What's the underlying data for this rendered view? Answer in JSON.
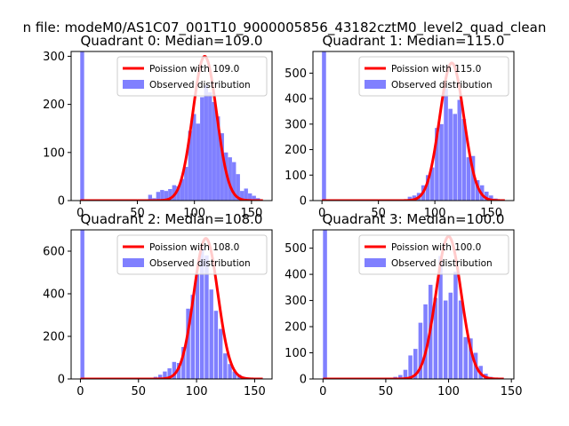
{
  "figure": {
    "suptitle": "n file: modeM0/AS1C07_001T10_9000005856_43182cztM0_level2_quad_clean"
  },
  "colors": {
    "histogram": "#8080ff",
    "poisson": "#ff0000",
    "axis": "#000000"
  },
  "chart_data": [
    {
      "type": "bar",
      "title": "Quadrant 0: Median=109.0",
      "legend": [
        "Poission with 109.0",
        "Observed distribution"
      ],
      "legend_position": "upper-right",
      "median": 109.0,
      "xlim": [
        -8,
        168
      ],
      "ylim": [
        0,
        310
      ],
      "xticks": [
        0,
        50,
        100,
        150
      ],
      "yticks": [
        0,
        100,
        200,
        300
      ],
      "bin_width": 3.4,
      "bins_start": [
        0,
        17,
        59.5,
        63,
        66.5,
        70,
        73.5,
        77,
        80.5,
        84,
        87.5,
        91,
        94.5,
        98,
        101.5,
        105,
        108.5,
        112,
        115.5,
        119,
        122.5,
        126,
        129.5,
        133,
        136.5,
        140,
        143.5,
        147,
        150.5,
        154
      ],
      "values": [
        310,
        2,
        12,
        5,
        18,
        22,
        20,
        24,
        32,
        30,
        45,
        70,
        145,
        180,
        160,
        215,
        240,
        225,
        205,
        175,
        140,
        100,
        90,
        80,
        55,
        20,
        25,
        15,
        10,
        5
      ],
      "poisson_peak": 300
    },
    {
      "type": "bar",
      "title": "Quadrant 1: Median=115.0",
      "legend": [
        "Poission with 115.0",
        "Observed distribution"
      ],
      "legend_position": "upper-right",
      "median": 115.0,
      "xlim": [
        -8,
        170
      ],
      "ylim": [
        0,
        585
      ],
      "xticks": [
        0,
        50,
        100,
        150
      ],
      "yticks": [
        0,
        100,
        200,
        300,
        400,
        500
      ],
      "bin_width": 3.6,
      "bins_start": [
        0,
        70,
        76,
        80,
        84,
        88,
        92,
        96,
        100,
        104,
        108,
        112,
        116,
        120,
        124,
        128,
        132,
        136,
        140,
        144,
        148,
        152
      ],
      "values": [
        585,
        5,
        15,
        20,
        30,
        60,
        100,
        130,
        285,
        300,
        440,
        360,
        340,
        395,
        320,
        170,
        175,
        80,
        60,
        35,
        20,
        8
      ],
      "poisson_peak": 540
    },
    {
      "type": "bar",
      "title": "Quadrant 2: Median=108.0",
      "legend": [
        "Poission with 108.0",
        "Observed distribution"
      ],
      "legend_position": "upper-right",
      "median": 108.0,
      "xlim": [
        -8,
        165
      ],
      "ylim": [
        0,
        700
      ],
      "xticks": [
        0,
        50,
        100,
        150
      ],
      "yticks": [
        0,
        200,
        400,
        600
      ],
      "bin_width": 3.4,
      "bins_start": [
        0,
        63,
        67,
        71,
        75,
        79,
        83,
        87,
        91,
        95,
        99,
        103,
        107,
        111,
        115,
        119,
        123,
        127,
        131,
        135,
        139,
        143
      ],
      "values": [
        700,
        10,
        20,
        35,
        50,
        80,
        75,
        150,
        330,
        395,
        490,
        620,
        580,
        420,
        320,
        235,
        120,
        70,
        35,
        20,
        10,
        5
      ],
      "poisson_peak": 660
    },
    {
      "type": "bar",
      "title": "Quadrant 3: Median=100.0",
      "legend": [
        "Poission with 100.0",
        "Observed distribution"
      ],
      "legend_position": "upper-right",
      "median": 100.0,
      "xlim": [
        -8,
        152
      ],
      "ylim": [
        0,
        570
      ],
      "xticks": [
        0,
        50,
        100,
        150
      ],
      "yticks": [
        0,
        100,
        200,
        300,
        400,
        500
      ],
      "bin_width": 3.2,
      "bins_start": [
        0,
        56,
        60,
        64,
        68,
        72,
        76,
        80,
        84,
        88,
        92,
        96,
        100,
        104,
        108,
        112,
        116,
        120,
        124,
        128,
        132
      ],
      "values": [
        570,
        8,
        15,
        35,
        90,
        115,
        215,
        285,
        360,
        310,
        470,
        300,
        330,
        410,
        300,
        160,
        155,
        100,
        50,
        20,
        8
      ],
      "poisson_peak": 545
    }
  ]
}
